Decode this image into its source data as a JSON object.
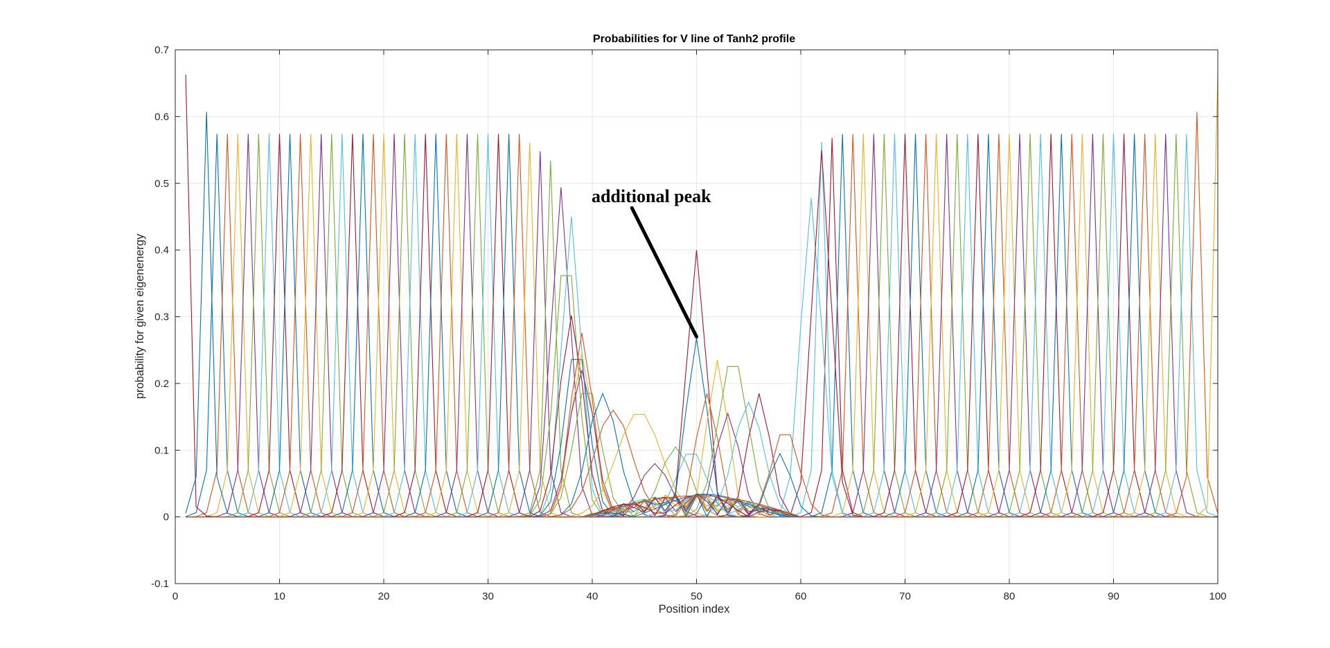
{
  "chart_data": {
    "type": "line",
    "title": "Probabilities for V line of Tanh2 profile",
    "xlabel": "Position index",
    "ylabel": "probability for given eigenenergy",
    "xlim": [
      0,
      100
    ],
    "ylim": [
      -0.1,
      0.7
    ],
    "xticks": [
      0,
      10,
      20,
      30,
      40,
      50,
      60,
      70,
      80,
      90,
      100
    ],
    "yticks": [
      -0.1,
      0,
      0.1,
      0.2,
      0.3,
      0.4,
      0.5,
      0.6,
      0.7
    ],
    "xtick_labels": [
      "0",
      "10",
      "20",
      "30",
      "40",
      "50",
      "60",
      "70",
      "80",
      "90",
      "100"
    ],
    "ytick_labels": [
      "-0.1",
      "0",
      "0.1",
      "0.2",
      "0.3",
      "0.4",
      "0.5",
      "0.6",
      "0.7"
    ],
    "grid": true,
    "colors": [
      "#0072BD",
      "#D95319",
      "#EDB120",
      "#7E2F8E",
      "#77AC30",
      "#4DBEEE",
      "#A2142F"
    ],
    "x_step": 1,
    "edge_peaks": [
      {
        "peak_x": 1,
        "peak_y": 0.663,
        "neighbor_y": 0.015
      },
      {
        "peak_x": 3,
        "peak_y": 0.607,
        "neighbor_y": 0.06
      },
      {
        "peak_x": 98,
        "peak_y": 0.607,
        "neighbor_y": 0.06
      },
      {
        "peak_x": 100,
        "peak_y": 0.663,
        "neighbor_y": 0.015
      }
    ],
    "left_plateau": {
      "first_peak_x": 4,
      "last_peak_x": 36,
      "peak_y": 0.574,
      "neighbor_y": 0.07,
      "decline_start_x": 33
    },
    "right_plateau": {
      "first_peak_x": 62,
      "last_peak_x": 97,
      "peak_y": 0.574,
      "neighbor_y": 0.07,
      "rise_end_x": 64
    },
    "transition_peaks": [
      {
        "peak_x": 37,
        "peak_y": 0.494,
        "width": 1.3
      },
      {
        "peak_x": 37.5,
        "peak_y": 0.404,
        "width": 1.5
      },
      {
        "peak_x": 38,
        "peak_y": 0.45,
        "width": 1.3
      },
      {
        "peak_x": 38,
        "peak_y": 0.302,
        "width": 1.6
      },
      {
        "peak_x": 38.5,
        "peak_y": 0.26,
        "width": 1.6
      },
      {
        "peak_x": 39,
        "peak_y": 0.276,
        "width": 1.5
      },
      {
        "peak_x": 39,
        "peak_y": 0.245,
        "width": 1.5
      },
      {
        "peak_x": 39,
        "peak_y": 0.22,
        "width": 1.7
      },
      {
        "peak_x": 39.5,
        "peak_y": 0.2,
        "width": 1.8
      },
      {
        "peak_x": 61,
        "peak_y": 0.478,
        "width": 1.4
      },
      {
        "peak_x": 62,
        "peak_y": 0.549,
        "width": 1.3
      }
    ],
    "middle_bumps": [
      {
        "peak_x": 41,
        "peak_y": 0.185,
        "width": 2.0
      },
      {
        "peak_x": 42,
        "peak_y": 0.16,
        "width": 2.5
      },
      {
        "peak_x": 44.5,
        "peak_y": 0.158,
        "width": 3.0
      },
      {
        "peak_x": 46,
        "peak_y": 0.08,
        "width": 2.0
      },
      {
        "peak_x": 48,
        "peak_y": 0.105,
        "width": 2.0
      },
      {
        "peak_x": 49.5,
        "peak_y": 0.1,
        "width": 2.0
      },
      {
        "peak_x": 50,
        "peak_y": 0.4,
        "width": 1.3
      },
      {
        "peak_x": 50,
        "peak_y": 0.268,
        "width": 1.4
      },
      {
        "peak_x": 51,
        "peak_y": 0.185,
        "width": 1.5
      },
      {
        "peak_x": 52,
        "peak_y": 0.235,
        "width": 1.4
      },
      {
        "peak_x": 53,
        "peak_y": 0.155,
        "width": 1.6
      },
      {
        "peak_x": 53.5,
        "peak_y": 0.24,
        "width": 2.0
      },
      {
        "peak_x": 55,
        "peak_y": 0.172,
        "width": 2.0
      },
      {
        "peak_x": 56,
        "peak_y": 0.185,
        "width": 1.5
      },
      {
        "peak_x": 58,
        "peak_y": 0.095,
        "width": 1.5
      },
      {
        "peak_x": 58.5,
        "peak_y": 0.133,
        "width": 1.8
      }
    ],
    "annotations": [
      {
        "text": "additional peak",
        "x": 46,
        "y": 0.48,
        "arrow_from": [
          44,
          0.46
        ],
        "arrow_to": [
          50,
          0.27
        ]
      }
    ]
  }
}
